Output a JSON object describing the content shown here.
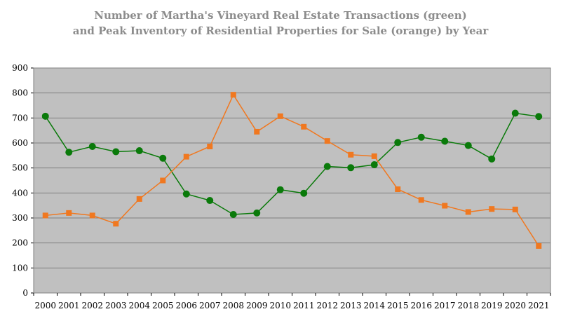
{
  "chart_data": {
    "type": "line",
    "title": [
      "Number of Martha's Vineyard Real Estate Transactions (green)",
      "and Peak Inventory of Residential Properties for Sale (orange) by Year"
    ],
    "xlabel": "",
    "ylabel": "",
    "ylim": [
      0,
      900
    ],
    "yticks": [
      0,
      100,
      200,
      300,
      400,
      500,
      600,
      700,
      800,
      900
    ],
    "grid": true,
    "legend": "none",
    "categories": [
      "2000",
      "2001",
      "2002",
      "2003",
      "2004",
      "2005",
      "2006",
      "2007",
      "2008",
      "2009",
      "2010",
      "2011",
      "2012",
      "2013",
      "2014",
      "2015",
      "2016",
      "2017",
      "2018",
      "2019",
      "2020",
      "2021"
    ],
    "series": [
      {
        "color": "#0a7a0a",
        "marker": "circle",
        "values": [
          707,
          563,
          586,
          565,
          569,
          539,
          396,
          370,
          314,
          320,
          413,
          399,
          506,
          501,
          513,
          602,
          623,
          607,
          590,
          536,
          719,
          706
        ]
      },
      {
        "color": "#f07820",
        "marker": "square",
        "values": [
          310,
          320,
          310,
          277,
          376,
          450,
          545,
          586,
          793,
          645,
          707,
          665,
          608,
          553,
          547,
          415,
          372,
          349,
          324,
          336,
          334,
          188
        ]
      }
    ],
    "colors": {
      "plot_background": "#c0c0c0",
      "gridline": "#7f7f7f",
      "title_text": "#8c8c8c"
    }
  }
}
